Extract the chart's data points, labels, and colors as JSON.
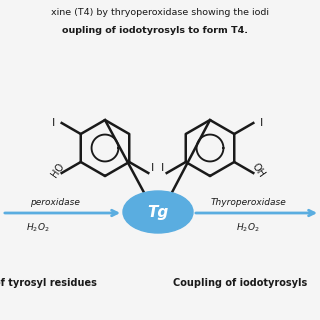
{
  "title_line1": "xine (T4) by thryoperoxidase showing the iodi",
  "title_line2": "oupling of iodotyrosyls to form T4.",
  "tg_label": "Tg",
  "tg_color": "#5aade0",
  "arrow_color": "#5aade0",
  "left_arrow_label1": "peroxidase",
  "left_arrow_label2": "H₂O₂",
  "right_arrow_label1": "Thyroperoxidase",
  "right_arrow_label2": "H₂O₂",
  "bottom_left_label": "of tyrosyl residues",
  "bottom_right_label": "Coupling of iodotyrosyls",
  "bg_color": "#f5f5f5",
  "text_color": "#1a1a1a",
  "ring_color": "#1a1a1a",
  "ring_lw": 1.8
}
